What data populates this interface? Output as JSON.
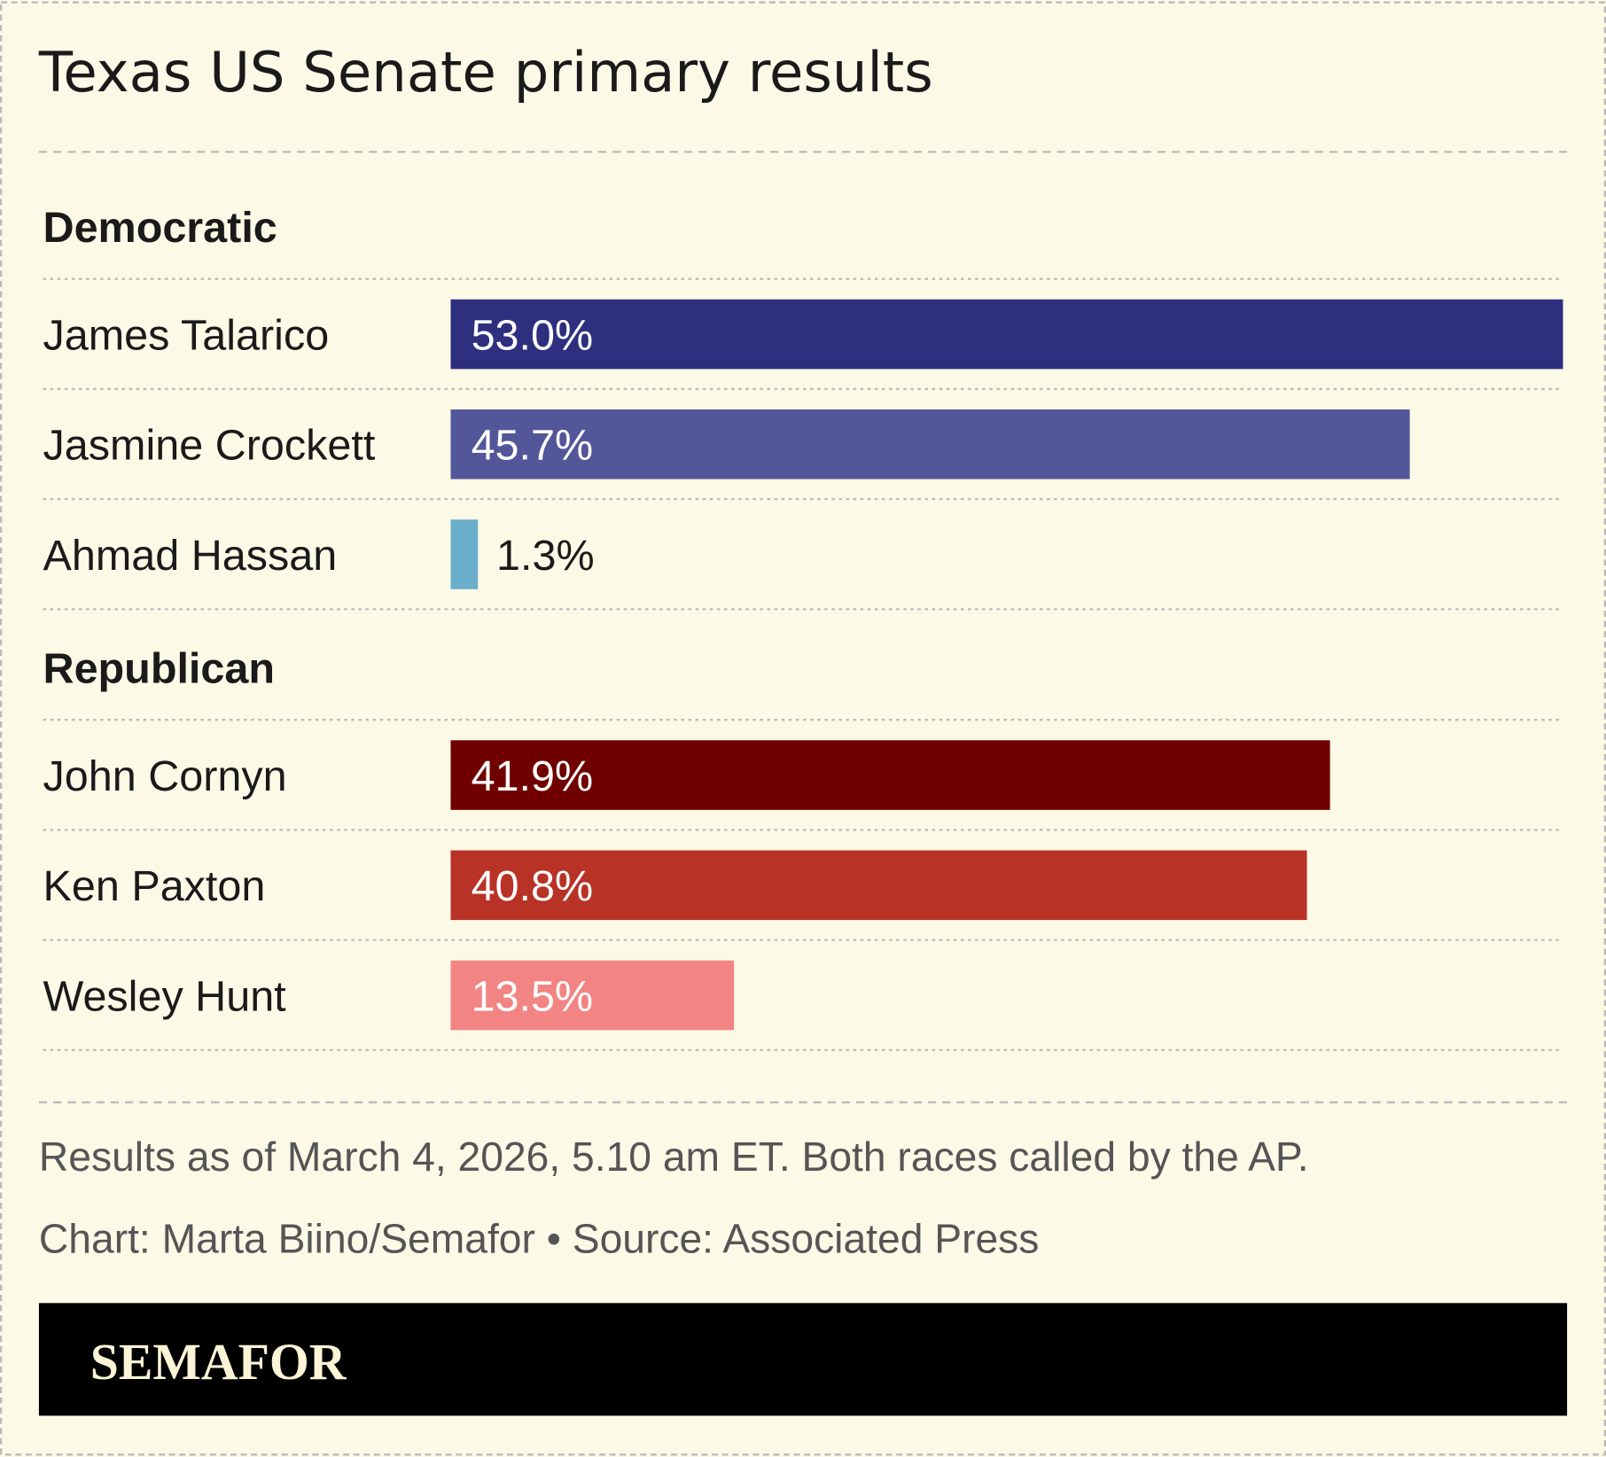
{
  "chart_data": {
    "type": "bar",
    "title": "Texas US Senate primary results",
    "series": [
      {
        "name": "Democratic",
        "categories": [
          "James Talarico",
          "Jasmine Crockett",
          "Ahmad Hassan"
        ],
        "values": [
          53.0,
          45.7,
          1.3
        ],
        "value_labels": [
          "53.0%",
          "45.7%",
          "1.3%"
        ],
        "colors": [
          "#2e2f7f",
          "#54569a",
          "#6aaecb"
        ]
      },
      {
        "name": "Republican",
        "categories": [
          "John Cornyn",
          "Ken Paxton",
          "Wesley Hunt"
        ],
        "values": [
          41.9,
          40.8,
          13.5
        ],
        "value_labels": [
          "41.9%",
          "40.8%",
          "13.5%"
        ],
        "colors": [
          "#700000",
          "#b93226",
          "#f28583"
        ]
      }
    ],
    "note": "Results as of March 4, 2026, 5.10 am ET. Both races called by the AP.",
    "credit": "Chart: Marta Biino/Semafor • Source: Associated Press",
    "logo": "SEMAFOR"
  }
}
